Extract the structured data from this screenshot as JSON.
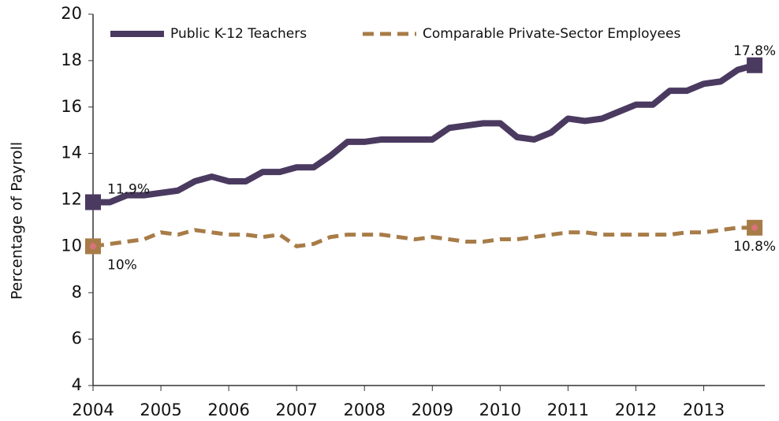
{
  "chart_data": {
    "type": "line",
    "y_label": "Percentage of Payroll",
    "x": [
      2004,
      2004.25,
      2004.5,
      2004.75,
      2005,
      2005.25,
      2005.5,
      2005.75,
      2006,
      2006.25,
      2006.5,
      2006.75,
      2007,
      2007.25,
      2007.5,
      2007.75,
      2008,
      2008.25,
      2008.5,
      2008.75,
      2009,
      2009.25,
      2009.5,
      2009.75,
      2010,
      2010.25,
      2010.5,
      2010.75,
      2011,
      2011.25,
      2011.5,
      2011.75,
      2012,
      2012.25,
      2012.5,
      2012.75,
      2013,
      2013.25,
      2013.5,
      2013.75
    ],
    "series": [
      {
        "name": "Public K-12 Teachers",
        "color": "#4b3a60",
        "dashed": false,
        "values": [
          11.9,
          11.9,
          12.2,
          12.2,
          12.3,
          12.4,
          12.8,
          13.0,
          12.8,
          12.8,
          13.2,
          13.2,
          13.4,
          13.4,
          13.9,
          14.5,
          14.5,
          14.6,
          14.6,
          14.6,
          14.6,
          15.1,
          15.2,
          15.3,
          15.3,
          14.7,
          14.6,
          14.9,
          15.5,
          15.4,
          15.5,
          15.8,
          16.1,
          16.1,
          16.7,
          16.7,
          17.0,
          17.1,
          17.6,
          17.8
        ],
        "value_labels": [
          "11.9%",
          null,
          null,
          null,
          null,
          null,
          null,
          null,
          null,
          null,
          null,
          null,
          null,
          null,
          null,
          null,
          null,
          null,
          null,
          null,
          null,
          null,
          null,
          null,
          null,
          null,
          null,
          null,
          null,
          null,
          null,
          null,
          null,
          null,
          null,
          null,
          null,
          null,
          null,
          "17.8%"
        ]
      },
      {
        "name": "Comparable Private-Sector Employees",
        "color": "#a87c48",
        "dashed": true,
        "values": [
          10.0,
          10.1,
          10.2,
          10.3,
          10.6,
          10.5,
          10.7,
          10.6,
          10.5,
          10.5,
          10.4,
          10.5,
          10.0,
          10.1,
          10.4,
          10.5,
          10.5,
          10.5,
          10.4,
          10.3,
          10.4,
          10.3,
          10.2,
          10.2,
          10.3,
          10.3,
          10.4,
          10.5,
          10.6,
          10.6,
          10.5,
          10.5,
          10.5,
          10.5,
          10.5,
          10.6,
          10.6,
          10.7,
          10.8,
          10.8
        ],
        "value_labels": [
          "10%",
          null,
          null,
          null,
          null,
          null,
          null,
          null,
          null,
          null,
          null,
          null,
          null,
          null,
          null,
          null,
          null,
          null,
          null,
          null,
          null,
          null,
          null,
          null,
          null,
          null,
          null,
          null,
          null,
          null,
          null,
          null,
          null,
          null,
          null,
          null,
          null,
          null,
          null,
          "10.8%"
        ]
      }
    ],
    "xlim": [
      2004,
      2013.9
    ],
    "xticks": [
      2004,
      2005,
      2006,
      2007,
      2008,
      2009,
      2010,
      2011,
      2012,
      2013
    ],
    "ylim": [
      4,
      20
    ],
    "yticks": [
      4,
      6,
      8,
      10,
      12,
      14,
      16,
      18,
      20
    ],
    "grid": false,
    "legend": "top"
  }
}
